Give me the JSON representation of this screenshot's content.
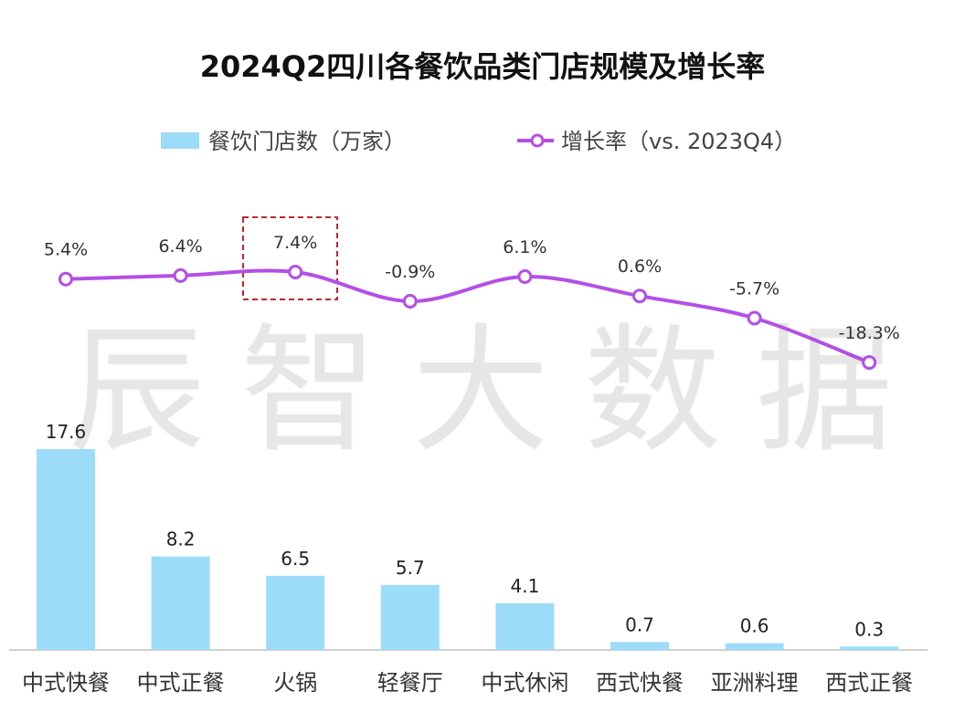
{
  "chart_data": {
    "type": "bar",
    "title": "2024Q2四川各餐饮品类门店规模及增长率",
    "watermark": "辰智大数据",
    "categories": [
      "中式快餐",
      "中式正餐",
      "火锅",
      "轻餐厅",
      "中式休闲",
      "西式快餐",
      "亚洲料理",
      "西式正餐"
    ],
    "series": [
      {
        "name": "餐饮门店数（万家）",
        "type": "bar",
        "values": [
          17.6,
          8.2,
          6.5,
          5.7,
          4.1,
          0.7,
          0.6,
          0.3
        ],
        "labels": [
          "17.6",
          "8.2",
          "6.5",
          "5.7",
          "4.1",
          "0.7",
          "0.6",
          "0.3"
        ],
        "color": "#9ddcf9"
      },
      {
        "name": "增长率（vs. 2023Q4）",
        "type": "line",
        "values": [
          5.4,
          6.4,
          7.4,
          -0.9,
          6.1,
          0.6,
          -5.7,
          -18.3
        ],
        "labels": [
          "5.4%",
          "6.4%",
          "7.4%",
          "-0.9%",
          "6.1%",
          "0.6%",
          "-5.7%",
          "-18.3%"
        ],
        "color": "#b34fe6"
      }
    ],
    "highlight_category": "火锅",
    "legend": "top-center",
    "grid": false
  }
}
